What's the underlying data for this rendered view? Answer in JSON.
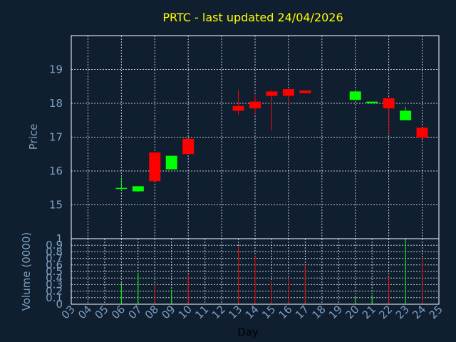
{
  "chart_data": {
    "type": "candlestick",
    "title": "PRTC - last updated 24/04/2026",
    "xlabel": "Day",
    "ylabel_price": "Price",
    "ylabel_volume": "Volume (0000)",
    "x_ticks": [
      "03",
      "04",
      "05",
      "06",
      "07",
      "08",
      "09",
      "10",
      "11",
      "12",
      "13",
      "14",
      "15",
      "16",
      "17",
      "18",
      "19",
      "20",
      "21",
      "22",
      "23",
      "24",
      "25"
    ],
    "price_ylim": [
      14,
      20
    ],
    "price_yticks": [
      15,
      16,
      17,
      18,
      19
    ],
    "volume_ylim": [
      0,
      1
    ],
    "volume_yticks": [
      0,
      0.1,
      0.2,
      0.3,
      0.4,
      0.5,
      0.6,
      0.7,
      0.8,
      0.9,
      1
    ],
    "volume_ytick_labels": [
      "0",
      "0.1",
      "0.2",
      "0.3",
      "0.4",
      "0.5",
      "0.6",
      "0.7",
      "0.8",
      "0.9",
      "1"
    ],
    "grid": true,
    "up_color": "#00ff00",
    "down_color": "#ff0000",
    "candles": [
      {
        "day": 6,
        "open": 15.5,
        "high": 15.8,
        "low": 15.5,
        "close": 15.5,
        "volume": 0.32
      },
      {
        "day": 7,
        "open": 15.4,
        "high": 15.55,
        "low": 15.38,
        "close": 15.55,
        "volume": 0.48
      },
      {
        "day": 8,
        "open": 16.55,
        "high": 16.55,
        "low": 15.7,
        "close": 15.7,
        "volume": 0.3
      },
      {
        "day": 9,
        "open": 16.05,
        "high": 16.45,
        "low": 16.05,
        "close": 16.45,
        "volume": 0.22
      },
      {
        "day": 10,
        "open": 16.95,
        "high": 16.95,
        "low": 16.5,
        "close": 16.5,
        "volume": 0.45
      },
      {
        "day": 13,
        "open": 17.92,
        "high": 18.4,
        "low": 17.65,
        "close": 17.78,
        "volume": 0.88
      },
      {
        "day": 14,
        "open": 18.05,
        "high": 18.25,
        "low": 17.7,
        "close": 17.85,
        "volume": 0.73
      },
      {
        "day": 15,
        "open": 18.35,
        "high": 18.38,
        "low": 17.2,
        "close": 18.22,
        "volume": 0.35
      },
      {
        "day": 16,
        "open": 18.42,
        "high": 18.42,
        "low": 17.95,
        "close": 18.22,
        "volume": 0.4
      },
      {
        "day": 17,
        "open": 18.38,
        "high": 18.38,
        "low": 18.3,
        "close": 18.3,
        "volume": 0.6
      },
      {
        "day": 20,
        "open": 18.1,
        "high": 18.35,
        "low": 18.1,
        "close": 18.35,
        "volume": 0.12
      },
      {
        "day": 21,
        "open": 18.0,
        "high": 18.05,
        "low": 18.0,
        "close": 18.05,
        "volume": 0.14
      },
      {
        "day": 22,
        "open": 18.15,
        "high": 18.15,
        "low": 17.1,
        "close": 17.85,
        "volume": 0.42
      },
      {
        "day": 23,
        "open": 17.5,
        "high": 17.9,
        "low": 17.5,
        "close": 17.78,
        "volume": 0.98
      },
      {
        "day": 24,
        "open": 17.28,
        "high": 17.28,
        "low": 16.98,
        "close": 16.98,
        "volume": 0.7
      }
    ]
  }
}
